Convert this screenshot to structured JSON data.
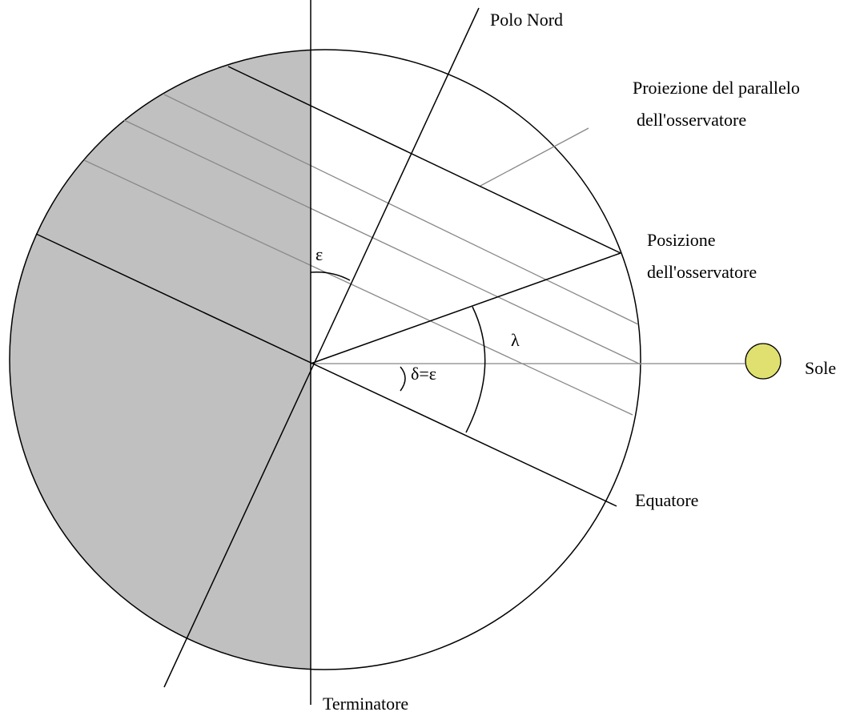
{
  "labels": {
    "north_pole": "Polo Nord",
    "parallel_projection": [
      "Proiezione del parallelo",
      "dell'osservatore"
    ],
    "observer_position": [
      "Posizione",
      "dell'osservatore"
    ],
    "sun": "Sole",
    "equator": "Equatore",
    "terminator": "Terminatore",
    "epsilon": "ε",
    "lambda": "λ",
    "delta": "δ=ε"
  }
}
